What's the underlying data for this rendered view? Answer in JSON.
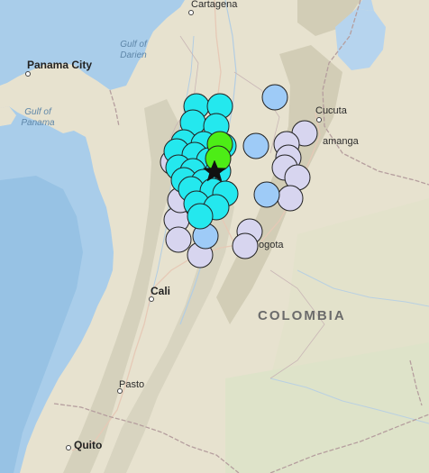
{
  "map": {
    "colors": {
      "ocean": "#aed0ea",
      "ocean_deep": "#9cc6e6",
      "land": "#e7e2cf",
      "mountain": "#d6d2bd",
      "lowland_green": "#dfe3cc",
      "border": "#b8a3a3",
      "road": "#e1c9b9",
      "lake": "#b9d6ee"
    },
    "labels": {
      "cartagena": "Cartagena",
      "panama_city": "Panama City",
      "gulf_of_darien_1": "Gulf of",
      "gulf_of_darien_2": "Darien",
      "gulf_of_panama_1": "Gulf of",
      "gulf_of_panama_2": "Panama",
      "cucuta": "Cucuta",
      "bucaramanga_partial": "amanga",
      "bogota_partial": "ogota",
      "cali": "Cali",
      "pasto": "Pasto",
      "quito": "Quito",
      "colombia": "COLOMBIA"
    }
  },
  "legend_colors": {
    "lavender": "#d7d5ef",
    "light_blue": "#9ecbf7",
    "cyan": "#24e8ee",
    "green": "#4ded16",
    "epicenter_star": "#111111"
  }
}
